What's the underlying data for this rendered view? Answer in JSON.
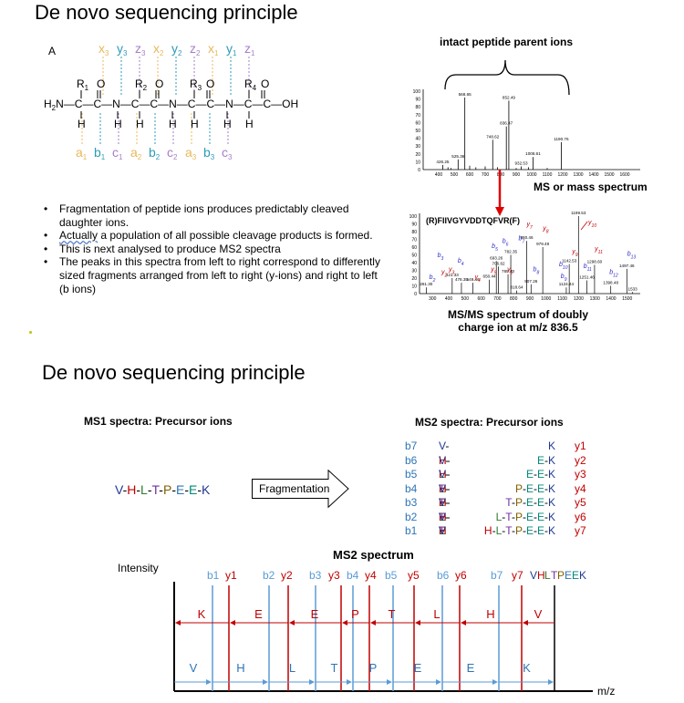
{
  "slide1": {
    "title": "De novo sequencing principle",
    "panel_label": "A",
    "bullets": [
      "Fragmentation of peptide ions produces predictably cleaved daughter ions.",
      "Actually a population of all possible cleavage products is formed.",
      "This is next analysed to produce MS2 spectra",
      "The peaks in this spectra from left to right correspond to differently sized fragments arranged from left to right (y-ions) and right to left (b ions)"
    ],
    "bullet2_underlined_word": "Actually",
    "bullet2_rest": " a population of all possible cleavage products is formed.",
    "structure": {
      "top_ions": [
        "x3",
        "y3",
        "z3",
        "x2",
        "y2",
        "z2",
        "x1",
        "y1",
        "z1"
      ],
      "bottom_ions": [
        "a1",
        "b1",
        "c1",
        "a2",
        "b2",
        "c2",
        "a3",
        "b3",
        "c3"
      ],
      "r_groups": [
        "R1",
        "R2",
        "R3",
        "R4"
      ],
      "terminal_left": "H2N",
      "terminal_right": "C-OH"
    },
    "spectrum_top": {
      "heading": "intact peptide parent ions",
      "caption": "MS or mass spectrum",
      "peak_labels": [
        "426.25",
        "525.36",
        "568.65",
        "748.62",
        "836.47",
        "852.49",
        "932.53",
        "1008.61",
        "1190.76"
      ]
    },
    "spectrum_bottom": {
      "sequence": "(R)FIIVGYVDDTQFVR(F)",
      "caption_line1": "MS/MS spectrum of doubly",
      "caption_line2": "charge ion at m/z 836.5",
      "peak_labels": [
        "261.30",
        "421.33",
        "478.35",
        "549.46",
        "650.44",
        "693.26",
        "706.62",
        "765.40",
        "782.35",
        "818.64",
        "880.46",
        "907.26",
        "979.49",
        "1124.44",
        "1142.53",
        "1199.53",
        "1251.46",
        "1298.60",
        "1398.48",
        "1497.46",
        "1533"
      ]
    }
  },
  "slide2": {
    "title": "De novo sequencing principle",
    "ms1_heading": "MS1 spectra: Precursor ions",
    "precursor_letters": [
      "V",
      "-",
      "H",
      "-",
      "L",
      "-",
      "T",
      "-",
      "P",
      "-",
      "E",
      "-",
      "E",
      "-",
      "K"
    ],
    "arrow_label": "Fragmentation",
    "ms2_heading": "MS2 spectra: Precursor ions",
    "b_labels": [
      "b7",
      "b6",
      "b5",
      "b4",
      "b3",
      "b2",
      "b1"
    ],
    "b_fragments": [
      "V-H-L-T-P-E-E",
      "V-H-L-T-P-E",
      "V-H-L-T-P",
      "V-H-L-T",
      "V-H-L",
      "V-H",
      "V"
    ],
    "y_fragments": [
      "K",
      "E-K",
      "E-E-K",
      "P-E-E-K",
      "T-P-E-E-K",
      "L-T-P-E-E-K",
      "H-L-T-P-E-E-K"
    ],
    "y_labels": [
      "y1",
      "y2",
      "y3",
      "y4",
      "y5",
      "y6",
      "y7"
    ],
    "spectrum_title": "MS2 spectrum",
    "y_axis_label": "Intensity",
    "x_axis_label": "m/z",
    "top_ion_labels": [
      "b1",
      "y1",
      "b2",
      "y2",
      "b3",
      "y3",
      "b4",
      "y4",
      "b5",
      "y5",
      "b6",
      "y6",
      "b7",
      "y7"
    ],
    "top_sequence": [
      "V",
      "H",
      "L",
      "T",
      "P",
      "E",
      "E",
      "K"
    ],
    "y_series_residues": [
      "K",
      "E",
      "E",
      "P",
      "T",
      "L",
      "H",
      "V"
    ],
    "b_series_residues": [
      "V",
      "H",
      "L",
      "T",
      "P",
      "E",
      "E",
      "K"
    ]
  },
  "colors": {
    "b_ion": "#2e75b6",
    "y_ion": "#c00000",
    "b_line": "#5b9bd5",
    "text_dark": "#000000"
  }
}
